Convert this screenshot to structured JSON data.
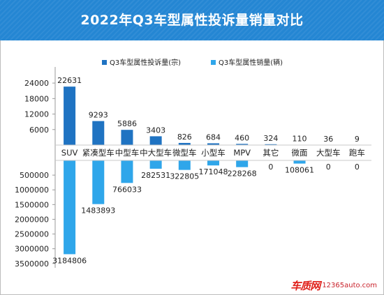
{
  "title": "2022年Q3车型属性投诉量销量对比",
  "watermark": {
    "logo": "车质网",
    "site": "12365auto.com"
  },
  "colors": {
    "header": "#2486d3",
    "complaints": "#1f73c2",
    "sales": "#2fa6ea"
  },
  "chart_data": {
    "type": "bar",
    "categories": [
      "SUV",
      "紧凑型车",
      "中型车",
      "中大型车",
      "微型车",
      "小型车",
      "MPV",
      "其它",
      "微面",
      "大型车",
      "跑车"
    ],
    "series": [
      {
        "name": "Q3车型属性投诉量(宗)",
        "values": [
          22631,
          9293,
          5886,
          3403,
          826,
          684,
          460,
          324,
          110,
          36,
          9
        ],
        "direction": "up"
      },
      {
        "name": "Q3车型属性销量(辆)",
        "values": [
          3184806,
          1483893,
          766033,
          282531,
          322805,
          171048,
          228268,
          0,
          108061,
          0,
          0
        ],
        "direction": "down"
      }
    ],
    "upper_axis": {
      "ticks": [
        "6000",
        "12000",
        "18000",
        "24000"
      ],
      "range": [
        0,
        27000
      ]
    },
    "lower_axis": {
      "ticks": [
        "500000",
        "1000000",
        "1500000",
        "2000000",
        "2500000",
        "3000000",
        "3500000"
      ],
      "range": [
        0,
        3600000
      ]
    },
    "legend_position": "top"
  }
}
